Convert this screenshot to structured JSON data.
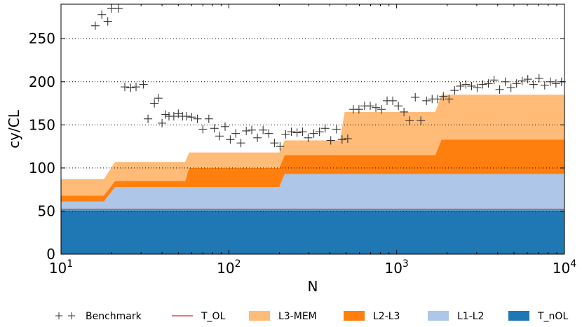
{
  "chart_data": {
    "type": "area",
    "xlabel": "N",
    "ylabel": "cy/CL",
    "xscale": "log",
    "xlim": [
      10,
      10000
    ],
    "ylim": [
      0,
      290
    ],
    "x_ticks": [
      10,
      100,
      1000,
      10000
    ],
    "x_tick_labels": [
      {
        "base": "10",
        "exp": "1"
      },
      {
        "base": "10",
        "exp": "2"
      },
      {
        "base": "10",
        "exp": "3"
      },
      {
        "base": "10",
        "exp": "4"
      }
    ],
    "y_ticks": [
      0,
      50,
      100,
      150,
      200,
      250
    ],
    "grid": "horizontal dotted",
    "legend_position": "below",
    "colors": {
      "T_nOL": "#1f77b4",
      "L1-L2": "#aec7e8",
      "L2-L3": "#ff7f0e",
      "L3-MEM": "#ffbb78",
      "T_OL": "#d62728",
      "Benchmark": "#333333"
    },
    "x": [
      10,
      18,
      21,
      55,
      58,
      200,
      215,
      460,
      490,
      1200,
      1700,
      1850,
      10000
    ],
    "series": [
      {
        "name": "T_nOL",
        "kind": "stack",
        "values": [
          51,
          51,
          51,
          51,
          51,
          51,
          51,
          51,
          51,
          51,
          51,
          51,
          51
        ]
      },
      {
        "name": "L1-L2",
        "kind": "stack",
        "values": [
          10,
          10,
          27,
          27,
          27,
          27,
          42,
          42,
          42,
          42,
          42,
          42,
          42
        ]
      },
      {
        "name": "L2-L3",
        "kind": "stack",
        "values": [
          7,
          7,
          7,
          7,
          22,
          22,
          22,
          22,
          22,
          22,
          22,
          40,
          40
        ]
      },
      {
        "name": "L3-MEM",
        "kind": "stack",
        "values": [
          19,
          19,
          22,
          22,
          18,
          18,
          17,
          17,
          50,
          50,
          50,
          52,
          52
        ]
      },
      {
        "name": "T_OL",
        "kind": "line",
        "values": [
          52,
          52,
          52,
          52,
          52,
          52,
          52,
          52,
          52,
          52,
          52,
          52,
          52
        ]
      }
    ],
    "benchmark": {
      "name": "Benchmark",
      "x": [
        16,
        17.5,
        19,
        20,
        22,
        24,
        26,
        28,
        31,
        33,
        36,
        38,
        40,
        42,
        44,
        47,
        50,
        53,
        56,
        60,
        65,
        70,
        76,
        82,
        88,
        95,
        102,
        110,
        118,
        127,
        137,
        148,
        160,
        173,
        187,
        202,
        218,
        236,
        255,
        275,
        297,
        321,
        347,
        375,
        405,
        438,
        473,
        511,
        552,
        596,
        644,
        696,
        752,
        812,
        877,
        948,
        1024,
        1106,
        1195,
        1291,
        1394,
        1506,
        1627,
        1758,
        1899,
        2051,
        2216,
        2394,
        2586,
        2794,
        3018,
        3260,
        3522,
        3805,
        4110,
        4440,
        4797,
        5182,
        5598,
        6047,
        6533,
        7057,
        7624,
        8236,
        8897,
        9611
      ],
      "y": [
        265,
        278,
        270,
        285,
        285,
        194,
        193,
        194,
        197,
        157,
        175,
        181,
        152,
        162,
        160,
        160,
        163,
        160,
        160,
        159,
        157,
        145,
        157,
        146,
        137,
        148,
        133,
        140,
        129,
        143,
        144,
        135,
        144,
        140,
        129,
        125,
        139,
        142,
        141,
        142,
        135,
        140,
        142,
        146,
        132,
        145,
        133,
        134,
        168,
        168,
        172,
        172,
        170,
        168,
        178,
        178,
        172,
        165,
        155,
        182,
        155,
        178,
        180,
        180,
        183,
        180,
        190,
        195,
        197,
        195,
        193,
        197,
        198,
        202,
        191,
        200,
        193,
        198,
        201,
        203,
        197,
        204,
        196,
        200,
        198,
        200
      ]
    },
    "legend": [
      {
        "label": "Benchmark",
        "kind": "marker"
      },
      {
        "label": "T_OL",
        "kind": "line"
      },
      {
        "label": "L3-MEM",
        "kind": "patch"
      },
      {
        "label": "L2-L3",
        "kind": "patch"
      },
      {
        "label": "L1-L2",
        "kind": "patch"
      },
      {
        "label": "T_nOL",
        "kind": "patch"
      }
    ]
  }
}
